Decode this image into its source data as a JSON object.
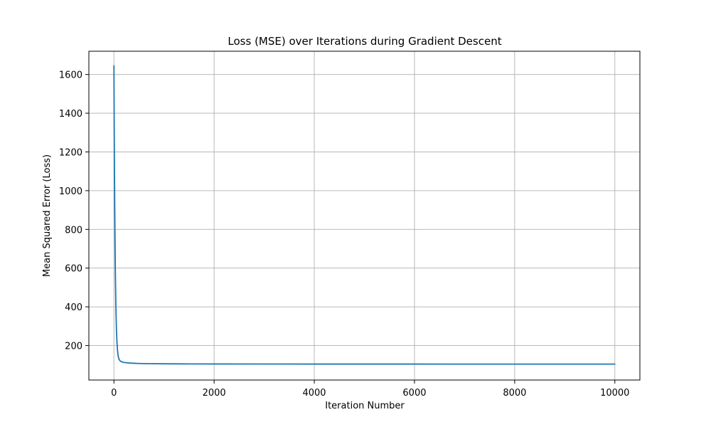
{
  "chart_data": {
    "type": "line",
    "title": "Loss (MSE) over Iterations during Gradient Descent",
    "xlabel": "Iteration Number",
    "ylabel": "Mean Squared Error (Loss)",
    "xlim": [
      -500,
      10500
    ],
    "ylim": [
      22,
      1720
    ],
    "xticks": [
      0,
      2000,
      4000,
      6000,
      8000,
      10000
    ],
    "yticks": [
      200,
      400,
      600,
      800,
      1000,
      1200,
      1400,
      1600
    ],
    "grid": true,
    "colors": {
      "line": "#1f77b4",
      "grid": "#b0b0b0",
      "axes": "#000000"
    },
    "series": [
      {
        "x": [
          0,
          5,
          10,
          15,
          20,
          25,
          30,
          40,
          50,
          60,
          70,
          80,
          90,
          100,
          120,
          140,
          160,
          180,
          200,
          250,
          300,
          400,
          500,
          700,
          1000,
          1500,
          2000,
          3000,
          4000,
          5000,
          6000,
          7000,
          8000,
          9000,
          10000
        ],
        "y": [
          1645,
          1380,
          1150,
          960,
          800,
          665,
          555,
          390,
          285,
          220,
          180,
          155,
          140,
          130,
          122,
          118,
          116,
          114,
          113,
          111,
          110,
          108.5,
          107.5,
          106.5,
          105.8,
          105.2,
          104.9,
          104.6,
          104.5,
          104.4,
          104.4,
          104.3,
          104.3,
          104.3,
          104.3
        ]
      }
    ]
  }
}
